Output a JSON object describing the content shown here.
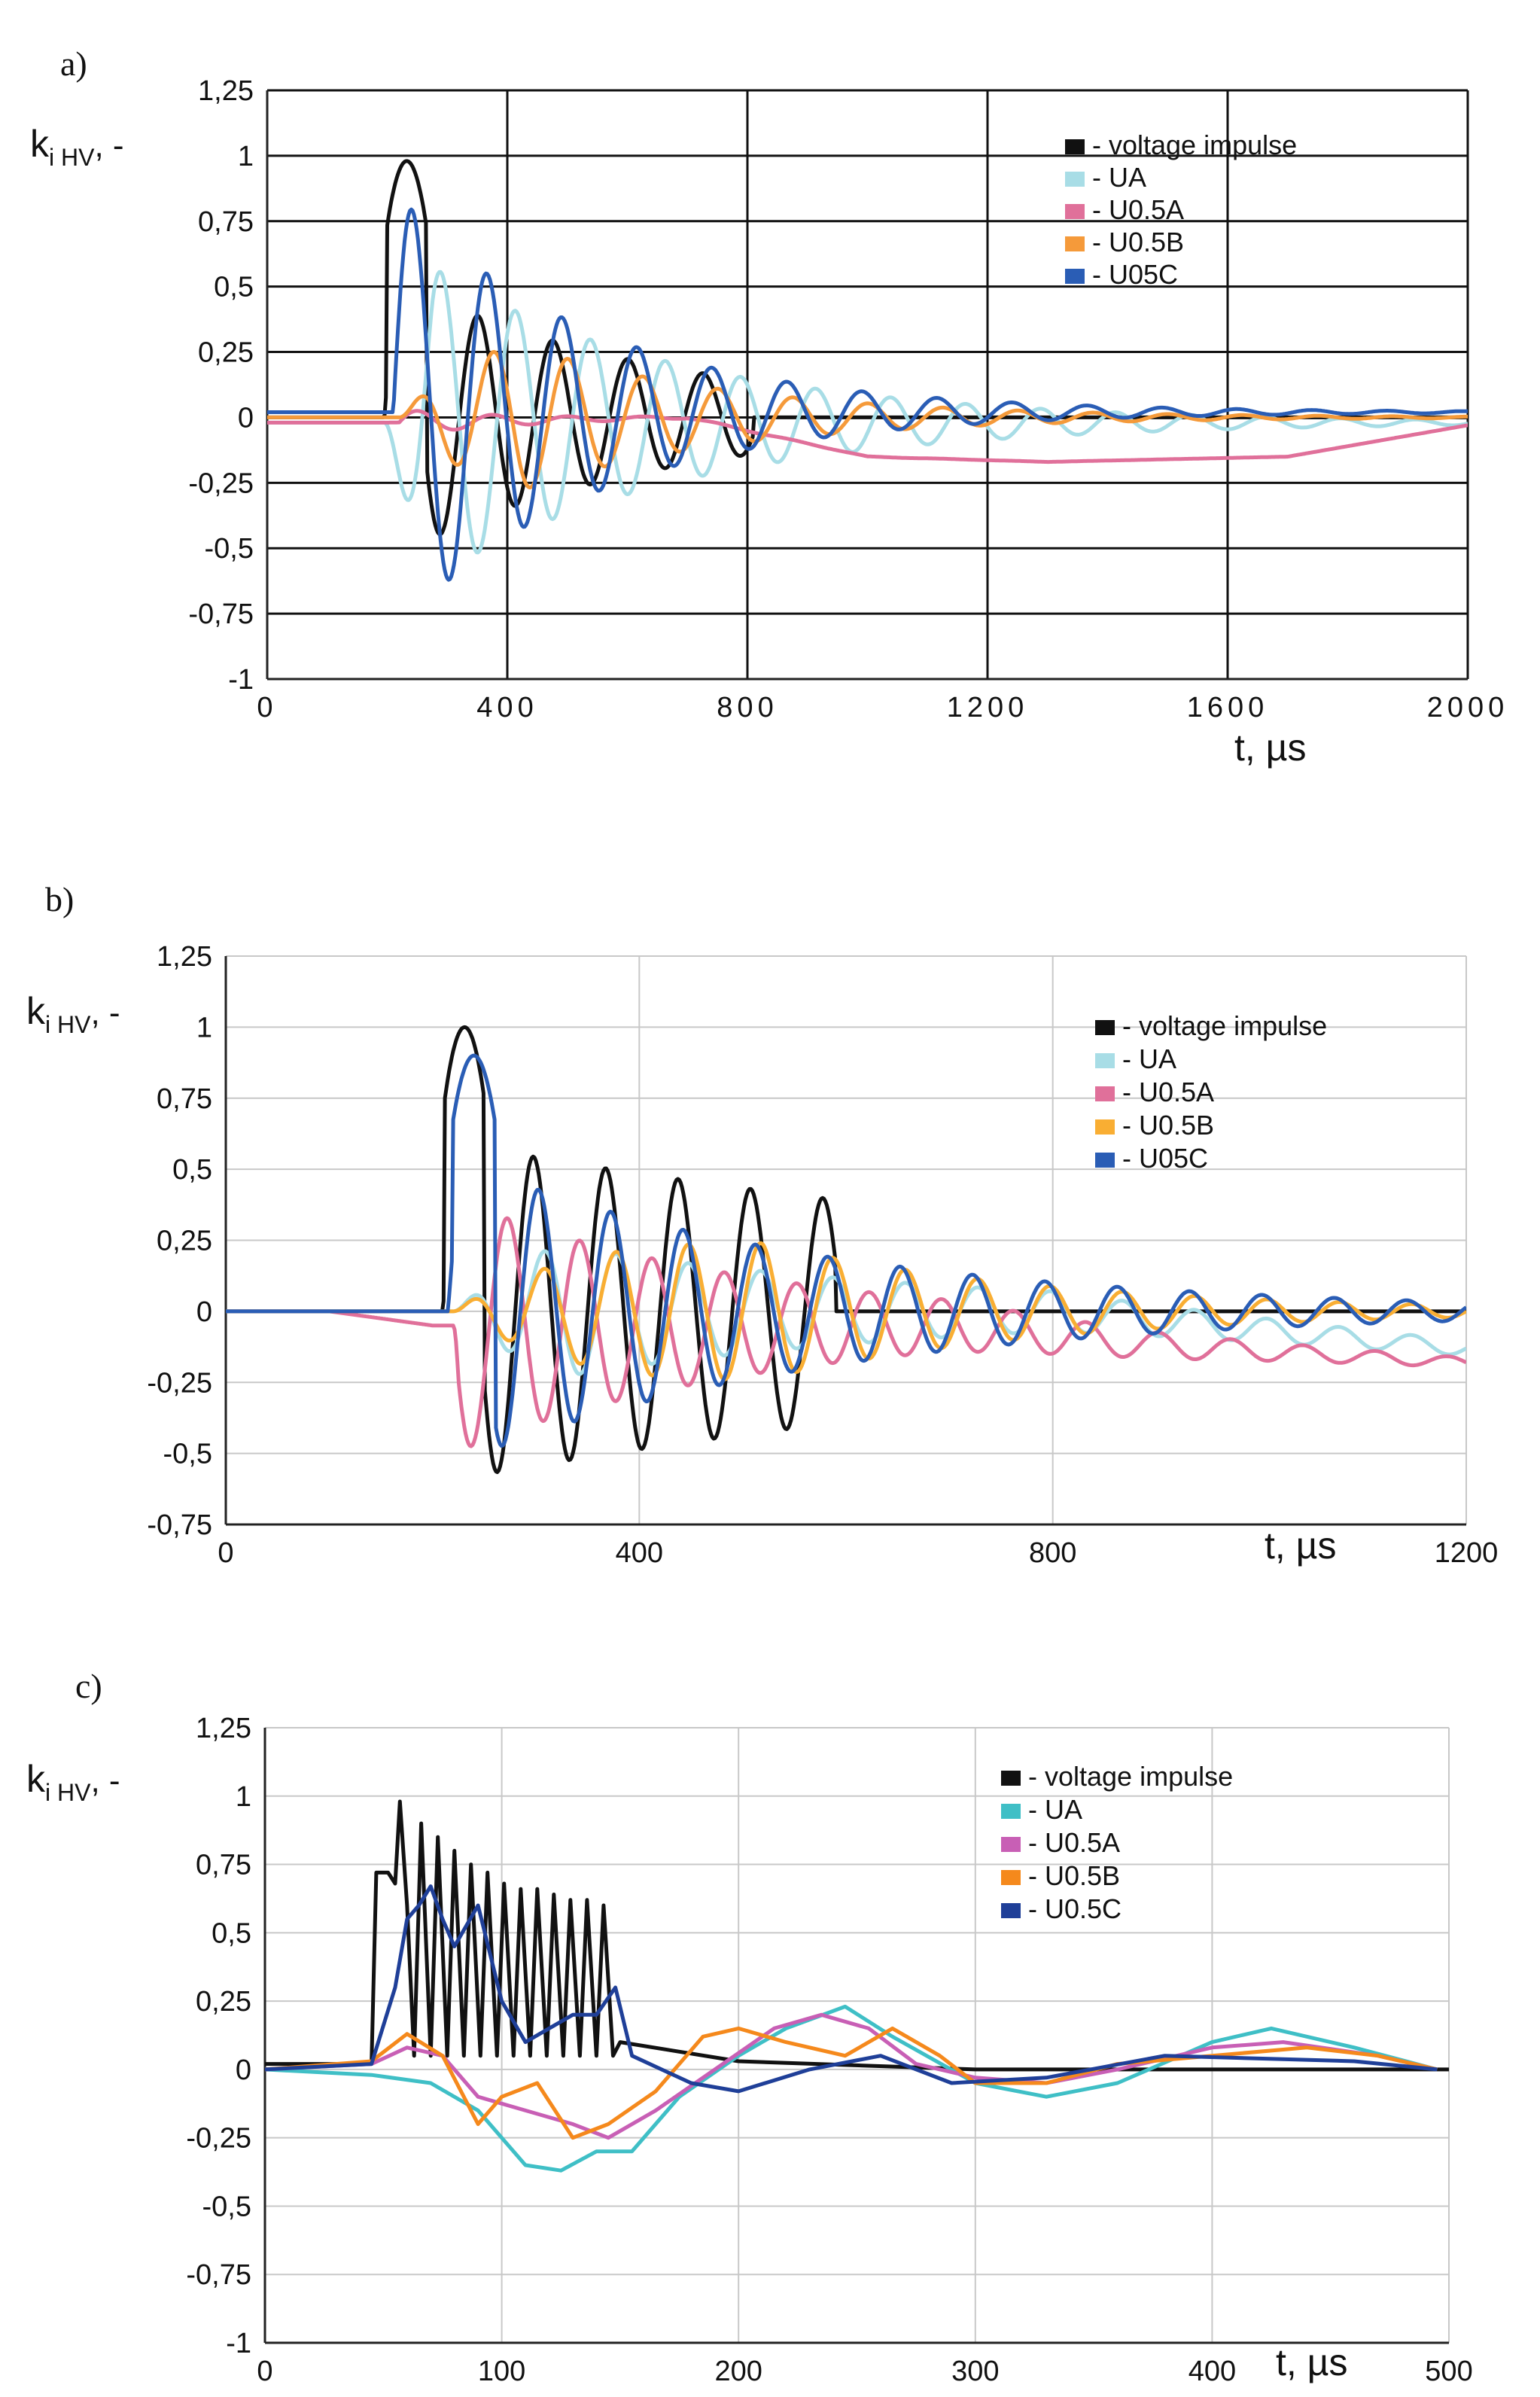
{
  "figure": {
    "background": "#ffffff"
  },
  "chart_data": [
    {
      "panel_label": "a)",
      "type": "line",
      "ylabel_main": "k",
      "ylabel_sub": "i HV",
      "ylabel_suffix": ", -",
      "xlabel": "t, µs",
      "xlim": [
        0,
        2000
      ],
      "ylim": [
        -1,
        1.25
      ],
      "xticks": [
        0,
        400,
        800,
        1200,
        1600,
        2000
      ],
      "xtick_labels": [
        "0",
        "400",
        "800",
        "1200",
        "1600",
        "2000"
      ],
      "yticks": [
        -1,
        -0.75,
        -0.5,
        -0.25,
        0,
        0.25,
        0.5,
        0.75,
        1,
        1.25
      ],
      "ytick_labels": [
        "-1",
        "-0,75",
        "-0,5",
        "-0,25",
        "0",
        "0,25",
        "0,5",
        "0,75",
        "1",
        "1,25"
      ],
      "grid_color": "#111111",
      "legend_position": "top-right",
      "series": [
        {
          "name": "- voltage impulse",
          "color": "#111111",
          "kind": "osc",
          "baseline": 0,
          "t0": 0,
          "t1": 2000,
          "start": 195,
          "period": 125,
          "attack": 1,
          "amp": 0.55,
          "decay": 450,
          "end": 810,
          "head_amp": 0.98,
          "head_start": 200,
          "head_end": 265
        },
        {
          "name": "- UA",
          "color": "#a8dde6",
          "kind": "osc",
          "baseline": -0.02,
          "t0": 0,
          "t1": 2000,
          "start": 195,
          "period": 125,
          "phase": 3.14,
          "attack": 80,
          "amp": 0.72,
          "decay": 420
        },
        {
          "name": "- U0.5A",
          "color": "#e0709a",
          "kind": "osc",
          "baseline": 0,
          "t0": 0,
          "t1": 2000,
          "start": 220,
          "period": 125,
          "amp": 0.05,
          "decay": 200,
          "drift": [
            [
              0,
              -0.02
            ],
            [
              200,
              -0.02
            ],
            [
              700,
              0
            ],
            [
              1000,
              -0.15
            ],
            [
              1300,
              -0.17
            ],
            [
              1700,
              -0.15
            ],
            [
              2000,
              -0.03
            ]
          ]
        },
        {
          "name": "- U0.5B",
          "color": "#f59a3a",
          "kind": "osc",
          "baseline": 0,
          "t0": 0,
          "t1": 2000,
          "start": 220,
          "period": 125,
          "amp": 0.5,
          "attack": 200,
          "decay": 350
        },
        {
          "name": "- U05C",
          "color": "#2a5db5",
          "kind": "osc",
          "baseline": 0.02,
          "t0": 0,
          "t1": 2000,
          "start": 210,
          "period": 125,
          "amp": 0.85,
          "decay": 330
        }
      ]
    },
    {
      "panel_label": "b)",
      "type": "line",
      "ylabel_main": "k",
      "ylabel_sub": "i HV",
      "ylabel_suffix": ", -",
      "xlabel": "t,  µs",
      "xlim": [
        0,
        1200
      ],
      "ylim": [
        -0.75,
        1.25
      ],
      "xticks": [
        0,
        400,
        800,
        1200
      ],
      "xtick_labels": [
        "0",
        "400",
        "800",
        "1200"
      ],
      "yticks": [
        -0.75,
        -0.5,
        -0.25,
        0,
        0.25,
        0.5,
        0.75,
        1,
        1.25
      ],
      "ytick_labels": [
        "-0,75",
        "-0,5",
        "-0,25",
        "0",
        "0,25",
        "0,5",
        "0,75",
        "1",
        "1,25"
      ],
      "grid_color": "#c8c8c8",
      "legend_position": "top-right",
      "series": [
        {
          "name": "- voltage impulse",
          "color": "#111111",
          "kind": "osc",
          "baseline": 0,
          "t0": 0,
          "t1": 1200,
          "start": 210,
          "period": 70,
          "amp": 0.6,
          "decay": 900,
          "end": 590,
          "head_amp": 1.0,
          "head_start": 212,
          "head_end": 250
        },
        {
          "name": "- UA",
          "color": "#a8dde6",
          "kind": "osc",
          "baseline": 0,
          "t0": 0,
          "t1": 1200,
          "start": 220,
          "period": 70,
          "amp": 0.3,
          "attack": 100,
          "decay": 400,
          "drift": [
            [
              0,
              0
            ],
            [
              800,
              0
            ],
            [
              1200,
              -0.13
            ]
          ]
        },
        {
          "name": "- U0.5A",
          "color": "#e0709a",
          "kind": "osc",
          "baseline": 0,
          "t0": 0,
          "t1": 1200,
          "start": 220,
          "period": 70,
          "amp": 0.45,
          "phase": 3.14,
          "attack": 5,
          "decay": 300,
          "drift": [
            [
              0,
              0
            ],
            [
              100,
              0
            ],
            [
              200,
              -0.05
            ],
            [
              700,
              -0.05
            ],
            [
              900,
              -0.12
            ],
            [
              1200,
              -0.18
            ]
          ]
        },
        {
          "name": "- U0.5B",
          "color": "#f9ae33",
          "kind": "osc",
          "baseline": 0,
          "t0": 0,
          "t1": 1200,
          "start": 220,
          "period": 70,
          "amp": 0.7,
          "attack": 300,
          "decay": 280
        },
        {
          "name": "- U05C",
          "color": "#2a5db5",
          "kind": "osc",
          "baseline": 0,
          "t0": 0,
          "t1": 1200,
          "start": 215,
          "period": 70,
          "amp": 0.55,
          "decay": 350,
          "head_amp": 0.9,
          "head_start": 220,
          "head_end": 260
        }
      ]
    },
    {
      "panel_label": "c)",
      "type": "line",
      "ylabel_main": "k",
      "ylabel_sub": "i HV",
      "ylabel_suffix": ", -",
      "xlabel": "t, µs",
      "xlim": [
        0,
        500
      ],
      "ylim": [
        -1,
        1.25
      ],
      "xticks": [
        0,
        100,
        200,
        300,
        400,
        500
      ],
      "xtick_labels": [
        "0",
        "100",
        "200",
        "300",
        "400",
        "500"
      ],
      "yticks": [
        -1,
        -0.75,
        -0.5,
        -0.25,
        0,
        0.25,
        0.5,
        0.75,
        1,
        1.25
      ],
      "ytick_labels": [
        "-1",
        "-0,75",
        "-0,5",
        "-0,25",
        "0",
        "0,25",
        "0,5",
        "0,75",
        "1",
        "1,25"
      ],
      "grid_color": "#c8c8c8",
      "legend_position": "top-right",
      "series": [
        {
          "name": "- voltage impulse",
          "color": "#111111",
          "kind": "pts",
          "points": [
            [
              0,
              0.02
            ],
            [
              45,
              0.02
            ],
            [
              47,
              0.72
            ],
            [
              52,
              0.72
            ],
            [
              55,
              0.68
            ],
            [
              57,
              0.98
            ],
            [
              60,
              0.6
            ],
            [
              63,
              0.05
            ],
            [
              66,
              0.9
            ],
            [
              70,
              0.05
            ],
            [
              73,
              0.85
            ],
            [
              77,
              0.05
            ],
            [
              80,
              0.8
            ],
            [
              84,
              0.05
            ],
            [
              87,
              0.75
            ],
            [
              91,
              0.05
            ],
            [
              94,
              0.72
            ],
            [
              98,
              0.05
            ],
            [
              101,
              0.68
            ],
            [
              105,
              0.05
            ],
            [
              108,
              0.66
            ],
            [
              112,
              0.05
            ],
            [
              115,
              0.66
            ],
            [
              119,
              0.05
            ],
            [
              122,
              0.64
            ],
            [
              126,
              0.05
            ],
            [
              129,
              0.62
            ],
            [
              133,
              0.05
            ],
            [
              136,
              0.62
            ],
            [
              140,
              0.05
            ],
            [
              143,
              0.6
            ],
            [
              147,
              0.05
            ],
            [
              150,
              0.1
            ],
            [
              200,
              0.03
            ],
            [
              300,
              0
            ],
            [
              500,
              0
            ]
          ]
        },
        {
          "name": "- UA",
          "color": "#3fbfc6",
          "kind": "pts",
          "points": [
            [
              0,
              0
            ],
            [
              45,
              -0.02
            ],
            [
              70,
              -0.05
            ],
            [
              90,
              -0.15
            ],
            [
              110,
              -0.35
            ],
            [
              125,
              -0.37
            ],
            [
              140,
              -0.3
            ],
            [
              155,
              -0.3
            ],
            [
              175,
              -0.1
            ],
            [
              200,
              0.05
            ],
            [
              220,
              0.15
            ],
            [
              245,
              0.23
            ],
            [
              265,
              0.12
            ],
            [
              300,
              -0.05
            ],
            [
              330,
              -0.1
            ],
            [
              360,
              -0.05
            ],
            [
              400,
              0.1
            ],
            [
              425,
              0.15
            ],
            [
              460,
              0.08
            ],
            [
              495,
              0
            ]
          ]
        },
        {
          "name": "- U0.5A",
          "color": "#c85fb5",
          "kind": "pts",
          "points": [
            [
              0,
              0
            ],
            [
              45,
              0.02
            ],
            [
              60,
              0.08
            ],
            [
              75,
              0.05
            ],
            [
              90,
              -0.1
            ],
            [
              110,
              -0.15
            ],
            [
              130,
              -0.2
            ],
            [
              145,
              -0.25
            ],
            [
              165,
              -0.15
            ],
            [
              190,
              0
            ],
            [
              215,
              0.15
            ],
            [
              235,
              0.2
            ],
            [
              255,
              0.15
            ],
            [
              275,
              0.02
            ],
            [
              300,
              -0.03
            ],
            [
              330,
              -0.05
            ],
            [
              360,
              0
            ],
            [
              400,
              0.08
            ],
            [
              430,
              0.1
            ],
            [
              470,
              0.05
            ],
            [
              495,
              0
            ]
          ]
        },
        {
          "name": "- U0.5B",
          "color": "#f5891c",
          "kind": "pts",
          "points": [
            [
              0,
              0
            ],
            [
              45,
              0.03
            ],
            [
              60,
              0.13
            ],
            [
              75,
              0.05
            ],
            [
              90,
              -0.2
            ],
            [
              100,
              -0.1
            ],
            [
              115,
              -0.05
            ],
            [
              130,
              -0.25
            ],
            [
              145,
              -0.2
            ],
            [
              165,
              -0.08
            ],
            [
              185,
              0.12
            ],
            [
              200,
              0.15
            ],
            [
              220,
              0.1
            ],
            [
              245,
              0.05
            ],
            [
              265,
              0.15
            ],
            [
              285,
              0.05
            ],
            [
              300,
              -0.05
            ],
            [
              330,
              -0.05
            ],
            [
              360,
              0.02
            ],
            [
              400,
              0.05
            ],
            [
              440,
              0.08
            ],
            [
              470,
              0.05
            ],
            [
              495,
              0
            ]
          ]
        },
        {
          "name": "- U0.5C",
          "color": "#1f3f98",
          "kind": "pts",
          "points": [
            [
              0,
              0
            ],
            [
              45,
              0.02
            ],
            [
              55,
              0.3
            ],
            [
              60,
              0.55
            ],
            [
              65,
              0.6
            ],
            [
              70,
              0.67
            ],
            [
              75,
              0.55
            ],
            [
              80,
              0.45
            ],
            [
              90,
              0.6
            ],
            [
              100,
              0.25
            ],
            [
              110,
              0.1
            ],
            [
              120,
              0.15
            ],
            [
              130,
              0.2
            ],
            [
              140,
              0.2
            ],
            [
              148,
              0.3
            ],
            [
              155,
              0.05
            ],
            [
              180,
              -0.05
            ],
            [
              200,
              -0.08
            ],
            [
              230,
              0
            ],
            [
              260,
              0.05
            ],
            [
              290,
              -0.05
            ],
            [
              330,
              -0.03
            ],
            [
              380,
              0.05
            ],
            [
              420,
              0.04
            ],
            [
              460,
              0.03
            ],
            [
              495,
              0
            ]
          ]
        }
      ]
    }
  ]
}
